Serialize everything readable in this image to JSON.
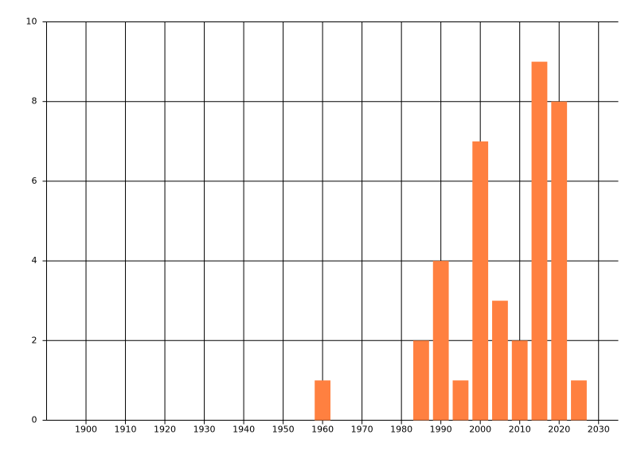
{
  "chart_data": {
    "type": "bar",
    "x": [
      1960,
      1985,
      1990,
      1995,
      2000,
      2005,
      2010,
      2015,
      2020,
      2025
    ],
    "values": [
      1,
      2,
      4,
      1,
      7,
      3,
      2,
      9,
      8,
      1
    ],
    "color": "#ff8040",
    "xlim": [
      1890,
      2035
    ],
    "xticks": [
      1900,
      1910,
      1920,
      1930,
      1940,
      1950,
      1960,
      1970,
      1980,
      1990,
      2000,
      2010,
      2020,
      2030
    ],
    "ylim": [
      0,
      10
    ],
    "yticks": [
      0,
      2,
      4,
      6,
      8,
      10
    ],
    "grid": true
  }
}
